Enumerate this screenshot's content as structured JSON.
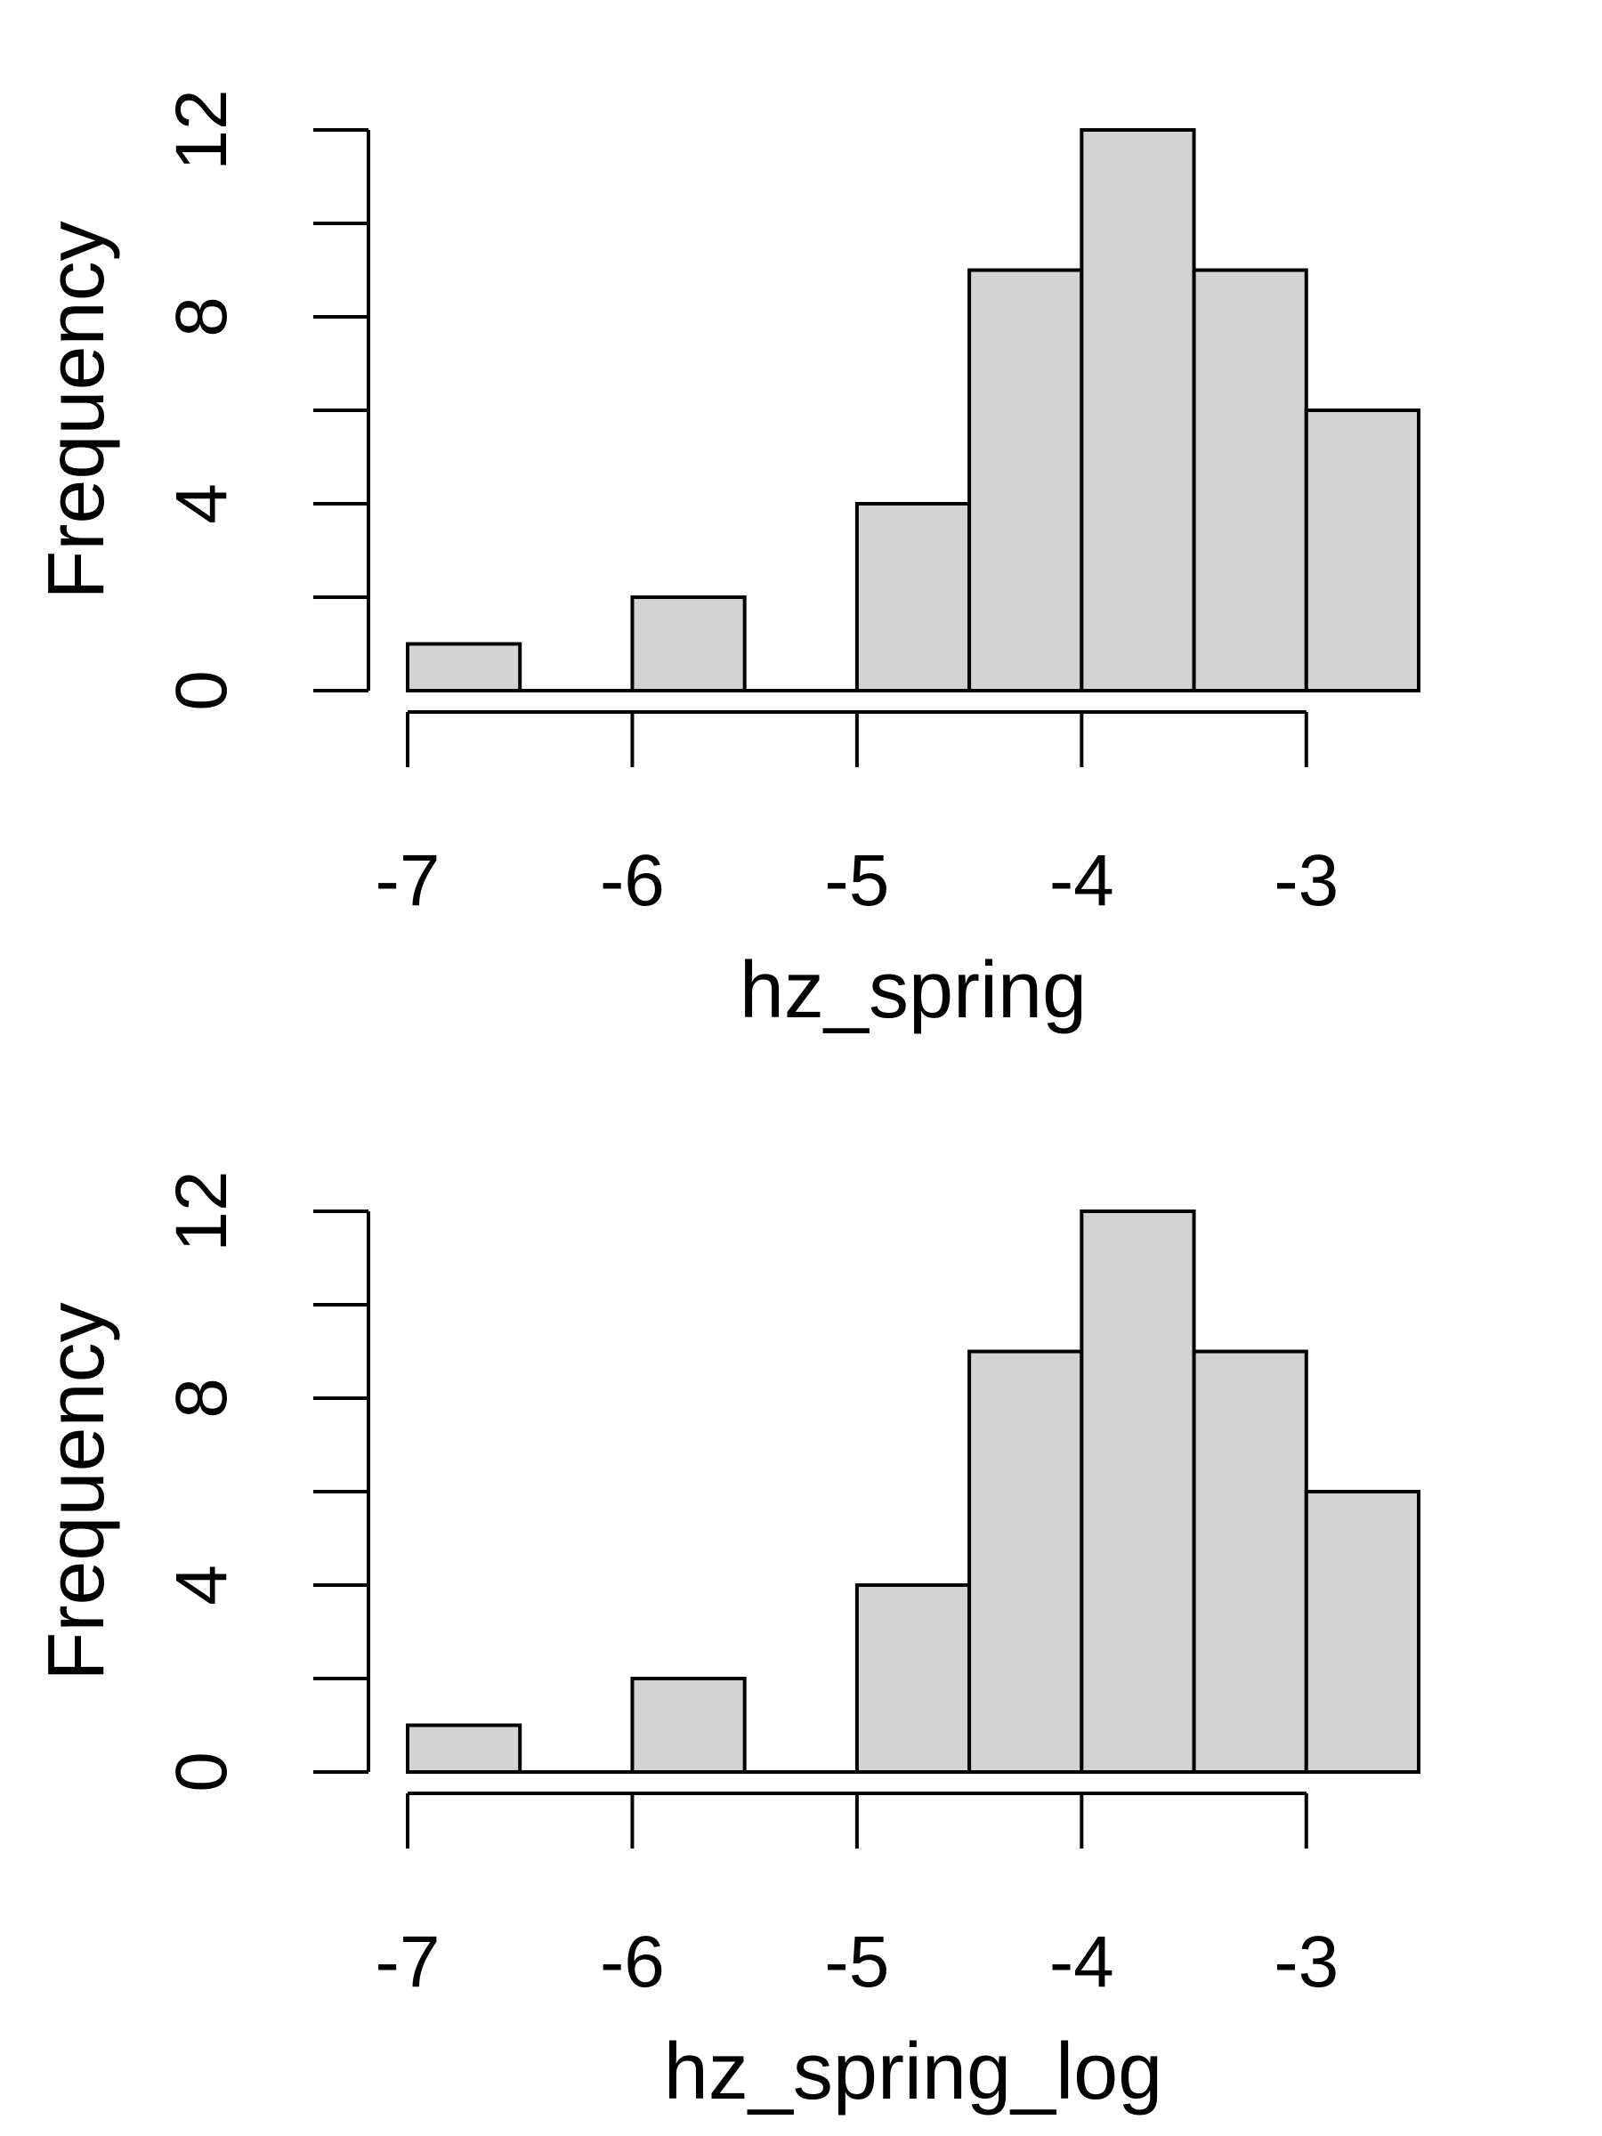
{
  "chart_data": [
    {
      "type": "bar",
      "title": "",
      "xlabel": "hz_spring",
      "ylabel": "Frequency",
      "bins": [
        [
          -7,
          -6.5
        ],
        [
          -6.5,
          -6
        ],
        [
          -6,
          -5.5
        ],
        [
          -5.5,
          -5
        ],
        [
          -5,
          -4.5
        ],
        [
          -4.5,
          -4
        ],
        [
          -4,
          -3.5
        ],
        [
          -3.5,
          -3
        ],
        [
          -3,
          -2.5
        ]
      ],
      "values": [
        1,
        0,
        2,
        0,
        4,
        9,
        12,
        9,
        6
      ],
      "x_ticks": [
        -7,
        -6,
        -5,
        -4,
        -3
      ],
      "x_tick_labels": [
        "-7",
        "-6",
        "-5",
        "-4",
        "-3"
      ],
      "y_ticks": [
        0,
        2,
        4,
        6,
        8,
        10,
        12
      ],
      "y_tick_labels": [
        "0",
        "",
        "4",
        "",
        "8",
        "",
        "12"
      ],
      "xlim": [
        -7,
        -2.5
      ],
      "ylim": [
        0,
        12
      ],
      "grid": false,
      "colors": {
        "bar_fill": "#d3d3d3",
        "bar_stroke": "#000000"
      }
    },
    {
      "type": "bar",
      "title": "",
      "xlabel": "hz_spring_log",
      "ylabel": "Frequency",
      "bins": [
        [
          -7,
          -6.5
        ],
        [
          -6.5,
          -6
        ],
        [
          -6,
          -5.5
        ],
        [
          -5.5,
          -5
        ],
        [
          -5,
          -4.5
        ],
        [
          -4.5,
          -4
        ],
        [
          -4,
          -3.5
        ],
        [
          -3.5,
          -3
        ],
        [
          -3,
          -2.5
        ]
      ],
      "values": [
        1,
        0,
        2,
        0,
        4,
        9,
        12,
        9,
        6
      ],
      "x_ticks": [
        -7,
        -6,
        -5,
        -4,
        -3
      ],
      "x_tick_labels": [
        "-7",
        "-6",
        "-5",
        "-4",
        "-3"
      ],
      "y_ticks": [
        0,
        2,
        4,
        6,
        8,
        10,
        12
      ],
      "y_tick_labels": [
        "0",
        "",
        "4",
        "",
        "8",
        "",
        "12"
      ],
      "xlim": [
        -7,
        -2.5
      ],
      "ylim": [
        0,
        12
      ],
      "grid": false,
      "colors": {
        "bar_fill": "#d3d3d3",
        "bar_stroke": "#000000"
      }
    }
  ]
}
